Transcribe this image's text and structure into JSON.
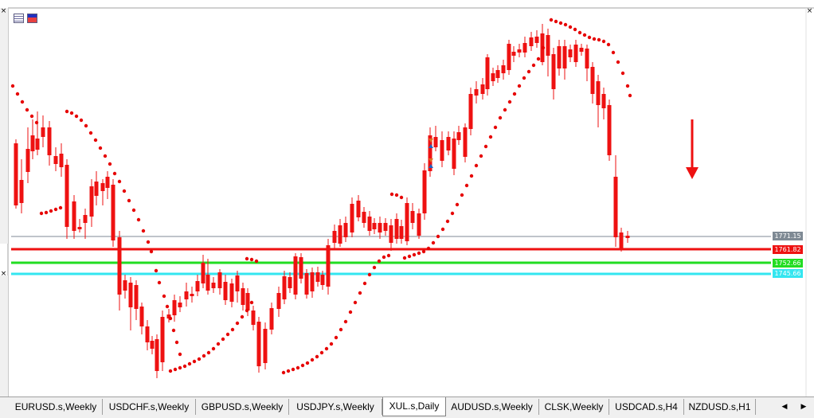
{
  "window": {
    "close_glyph": "×",
    "close_icon": "close-icon"
  },
  "toolbar": {
    "icons": [
      "table-icon",
      "window-icon"
    ]
  },
  "chart": {
    "symbol": "XUL.s,Daily",
    "colors": {
      "bull": "#22dd22",
      "bear": "#ee1111",
      "sar": "#e60000",
      "grid": "#d8d8d8",
      "current_line": "#8a9aa8"
    },
    "indicator": "parabolic-sar",
    "price_levels": [
      {
        "name": "current-price",
        "value": "1771.15",
        "color": "#7f8a94"
      },
      {
        "name": "resistance",
        "value": "1761.82",
        "color": "#ee1111"
      },
      {
        "name": "support-green",
        "value": "1752.66",
        "color": "#22dd22"
      },
      {
        "name": "support-cyan",
        "value": "1745.66",
        "color": "#33e6f0"
      }
    ],
    "signal": {
      "direction": "down",
      "icon": "down-arrow-icon",
      "color": "#ee1111"
    }
  },
  "tabs": [
    {
      "label": "EURUSD.s,Weekly",
      "active": false
    },
    {
      "label": "USDCHF.s,Weekly",
      "active": false
    },
    {
      "label": "GBPUSD.s,Weekly",
      "active": false
    },
    {
      "label": "USDJPY.s,Weekly",
      "active": false
    },
    {
      "label": "XUL.s,Daily",
      "active": true
    },
    {
      "label": "AUDUSD.s,Weekly",
      "active": false
    },
    {
      "label": "CLSK,Weekly",
      "active": false
    },
    {
      "label": "USDCAD.s,H4",
      "active": false
    },
    {
      "label": "NZDUSD.s,H1",
      "active": false
    }
  ],
  "tab_nav": {
    "prev": "◀",
    "next": "▶"
  }
}
